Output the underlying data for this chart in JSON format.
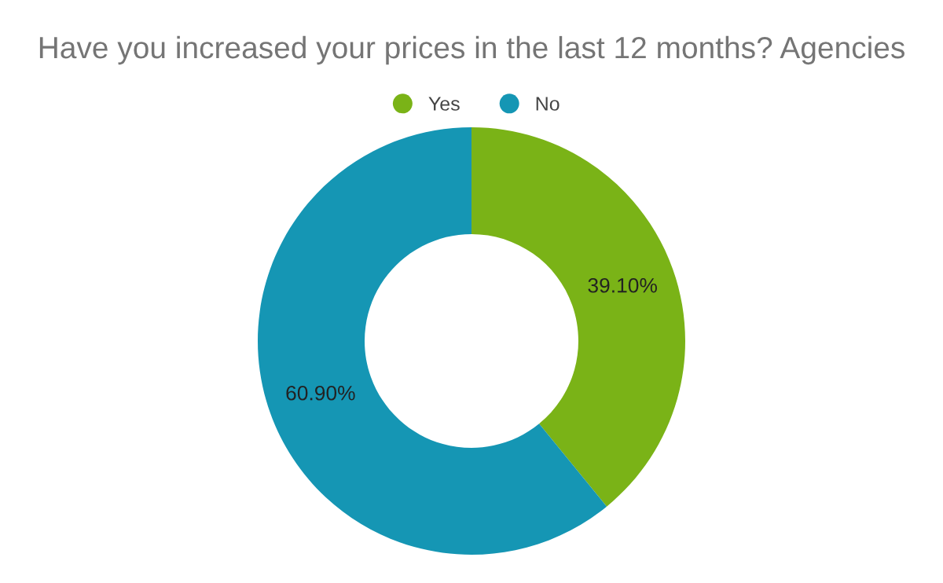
{
  "chart_data": {
    "type": "donut",
    "title": "Have you increased your prices in the last 12 months? Agencies",
    "categories": [
      "Yes",
      "No"
    ],
    "values": [
      39.1,
      60.9
    ],
    "colors": [
      "#7ab317",
      "#1596b4"
    ],
    "value_labels": [
      "39.10%",
      "60.90%"
    ],
    "legend": "top"
  }
}
